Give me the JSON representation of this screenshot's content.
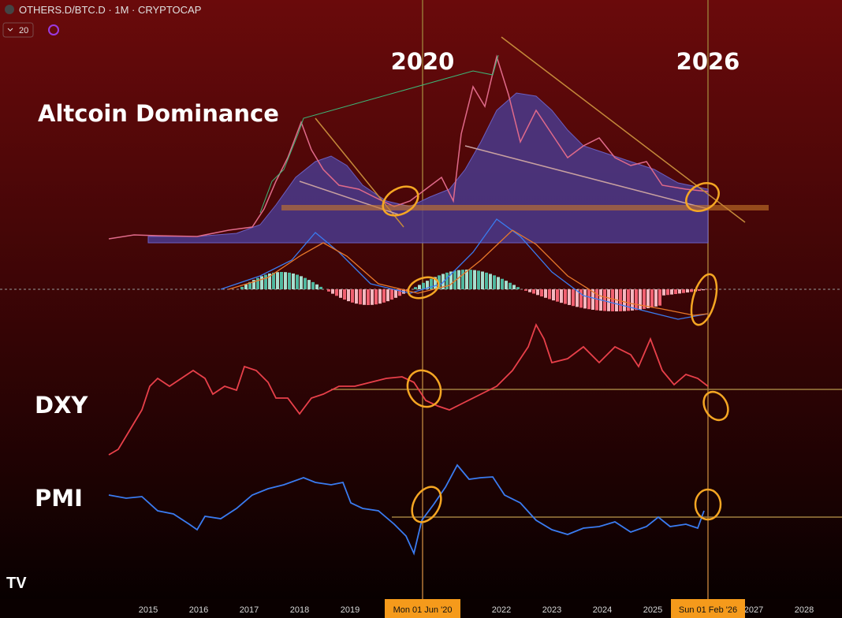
{
  "header": {
    "symbol": "OTHERS.D/BTC.D · 1M · CRYPTOCAP",
    "interval_badge": "20"
  },
  "annotations": {
    "year_left": "2020",
    "year_right": "2026",
    "title": "Altcoin Dominance",
    "dxy": "DXY",
    "pmi": "PMI"
  },
  "time_axis": {
    "labels": [
      "2015",
      "2016",
      "2017",
      "2018",
      "2019",
      "2022",
      "2023",
      "2024",
      "2025",
      "2027",
      "2028"
    ],
    "marker_left": "Mon 01 Jun '20",
    "marker_right": "Sun 01 Feb '26"
  }
}
